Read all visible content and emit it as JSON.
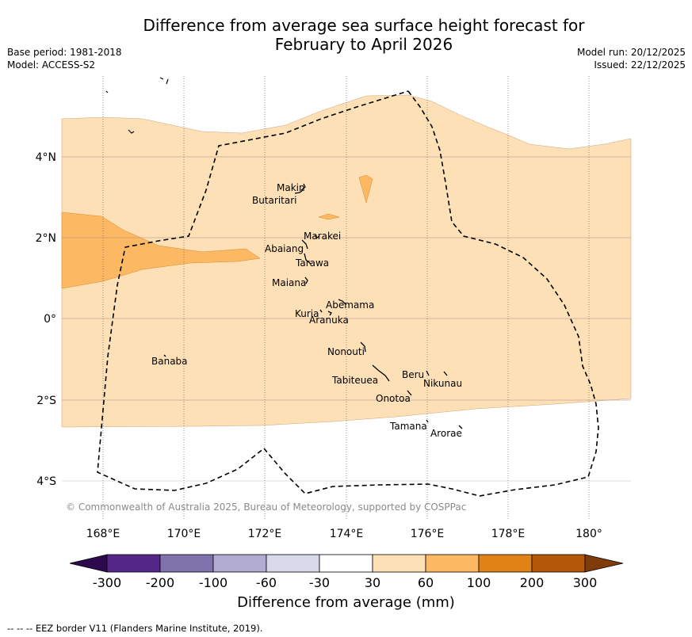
{
  "title_line1": "Difference from average sea surface height forecast for",
  "title_line2": "February to April 2026",
  "base_period": "Base period: 1981-2018",
  "model": "Model: ACCESS-S2",
  "model_run": "Model run: 20/12/2025",
  "issued": "Issued: 22/12/2025",
  "copyright": "© Commonwealth of Australia 2025, Bureau of Meteorology, supported by COSPPac",
  "lon_ticks": [
    "168°E",
    "170°E",
    "172°E",
    "174°E",
    "176°E",
    "178°E",
    "180°"
  ],
  "lat_ticks": [
    "4°N",
    "2°N",
    "0°",
    "2°S",
    "4°S"
  ],
  "islands": [
    "Makin",
    "Butaritari",
    "Marakei",
    "Abaiang",
    "Tarawa",
    "Maiana",
    "Abemama",
    "Kuria",
    "Aranuka",
    "Banaba",
    "Nonouti",
    "Tabiteuea",
    "Beru",
    "Nikunau",
    "Onotoa",
    "Tamana",
    "Arorae"
  ],
  "colorbar": {
    "label": "Difference from average (mm)",
    "ticks": [
      "-300",
      "-200",
      "-100",
      "-60",
      "-30",
      "30",
      "60",
      "100",
      "200",
      "300"
    ],
    "colors": [
      "#2d0a4e",
      "#542788",
      "#8073ac",
      "#b2abd2",
      "#d8daeb",
      "#ffffff",
      "#fee0b6",
      "#fdb863",
      "#e08214",
      "#b35806",
      "#7f3b08"
    ]
  },
  "footnote": "--  --  -- EEZ border V11 (Flanders Marine Institute, 2019)."
}
